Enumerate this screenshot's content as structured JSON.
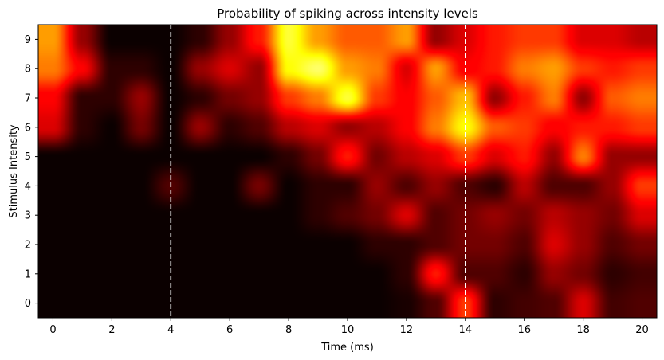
{
  "chart_data": {
    "type": "heatmap",
    "title": "Probability of spiking across intensity levels",
    "xlabel": "Time (ms)",
    "ylabel": "Stimulus Intensity",
    "xlim": [
      -0.5,
      20.5
    ],
    "ylim": [
      -0.5,
      9.5
    ],
    "x_ticks": [
      "0",
      "2",
      "4",
      "6",
      "8",
      "10",
      "12",
      "14",
      "16",
      "18",
      "20"
    ],
    "y_ticks": [
      "0",
      "1",
      "2",
      "3",
      "4",
      "5",
      "6",
      "7",
      "8",
      "9"
    ],
    "colormap": "hot",
    "color_range": [
      0,
      1
    ],
    "vlines": [
      {
        "x": 4,
        "style": "dashed",
        "color": "#ffffff"
      },
      {
        "x": 14,
        "style": "dashed",
        "color": "#ffffff"
      }
    ],
    "x": [
      0,
      1,
      2,
      3,
      4,
      5,
      6,
      7,
      8,
      9,
      10,
      11,
      12,
      13,
      14,
      15,
      16,
      17,
      18,
      19,
      20
    ],
    "y": [
      0,
      1,
      2,
      3,
      4,
      5,
      6,
      7,
      8,
      9
    ],
    "z": [
      [
        0.0,
        0.0,
        0.0,
        0.0,
        0.0,
        0.0,
        0.0,
        0.0,
        0.0,
        0.0,
        0.0,
        0.0,
        0.02,
        0.1,
        0.45,
        0.05,
        0.08,
        0.1,
        0.3,
        0.08,
        0.1
      ],
      [
        0.0,
        0.0,
        0.0,
        0.0,
        0.0,
        0.0,
        0.0,
        0.0,
        0.0,
        0.0,
        0.0,
        0.0,
        0.05,
        0.4,
        0.1,
        0.1,
        0.05,
        0.2,
        0.15,
        0.05,
        0.08
      ],
      [
        0.0,
        0.0,
        0.0,
        0.0,
        0.0,
        0.0,
        0.0,
        0.0,
        0.0,
        0.0,
        0.0,
        0.05,
        0.05,
        0.1,
        0.15,
        0.15,
        0.1,
        0.3,
        0.2,
        0.1,
        0.15
      ],
      [
        0.0,
        0.0,
        0.0,
        0.0,
        0.0,
        0.0,
        0.0,
        0.0,
        0.0,
        0.05,
        0.1,
        0.15,
        0.3,
        0.1,
        0.15,
        0.2,
        0.15,
        0.25,
        0.2,
        0.15,
        0.3
      ],
      [
        0.0,
        0.0,
        0.0,
        0.0,
        0.1,
        0.0,
        0.0,
        0.15,
        0.0,
        0.05,
        0.05,
        0.2,
        0.1,
        0.2,
        0.1,
        0.05,
        0.25,
        0.1,
        0.1,
        0.2,
        0.45
      ],
      [
        0.0,
        0.0,
        0.0,
        0.0,
        0.0,
        0.0,
        0.0,
        0.0,
        0.05,
        0.15,
        0.4,
        0.15,
        0.25,
        0.3,
        0.45,
        0.3,
        0.4,
        0.2,
        0.55,
        0.2,
        0.2
      ],
      [
        0.3,
        0.05,
        0.0,
        0.15,
        0.0,
        0.2,
        0.05,
        0.1,
        0.25,
        0.3,
        0.2,
        0.25,
        0.35,
        0.55,
        0.75,
        0.5,
        0.45,
        0.35,
        0.4,
        0.4,
        0.45
      ],
      [
        0.35,
        0.05,
        0.05,
        0.2,
        0.0,
        0.05,
        0.15,
        0.2,
        0.45,
        0.55,
        0.8,
        0.45,
        0.35,
        0.5,
        0.65,
        0.2,
        0.4,
        0.55,
        0.2,
        0.5,
        0.55
      ],
      [
        0.55,
        0.35,
        0.05,
        0.05,
        0.0,
        0.2,
        0.3,
        0.2,
        0.75,
        0.85,
        0.6,
        0.55,
        0.3,
        0.6,
        0.35,
        0.4,
        0.55,
        0.6,
        0.45,
        0.4,
        0.45
      ],
      [
        0.6,
        0.2,
        0.0,
        0.0,
        0.0,
        0.05,
        0.2,
        0.4,
        0.8,
        0.6,
        0.5,
        0.5,
        0.6,
        0.2,
        0.3,
        0.4,
        0.45,
        0.45,
        0.3,
        0.3,
        0.25
      ]
    ]
  }
}
